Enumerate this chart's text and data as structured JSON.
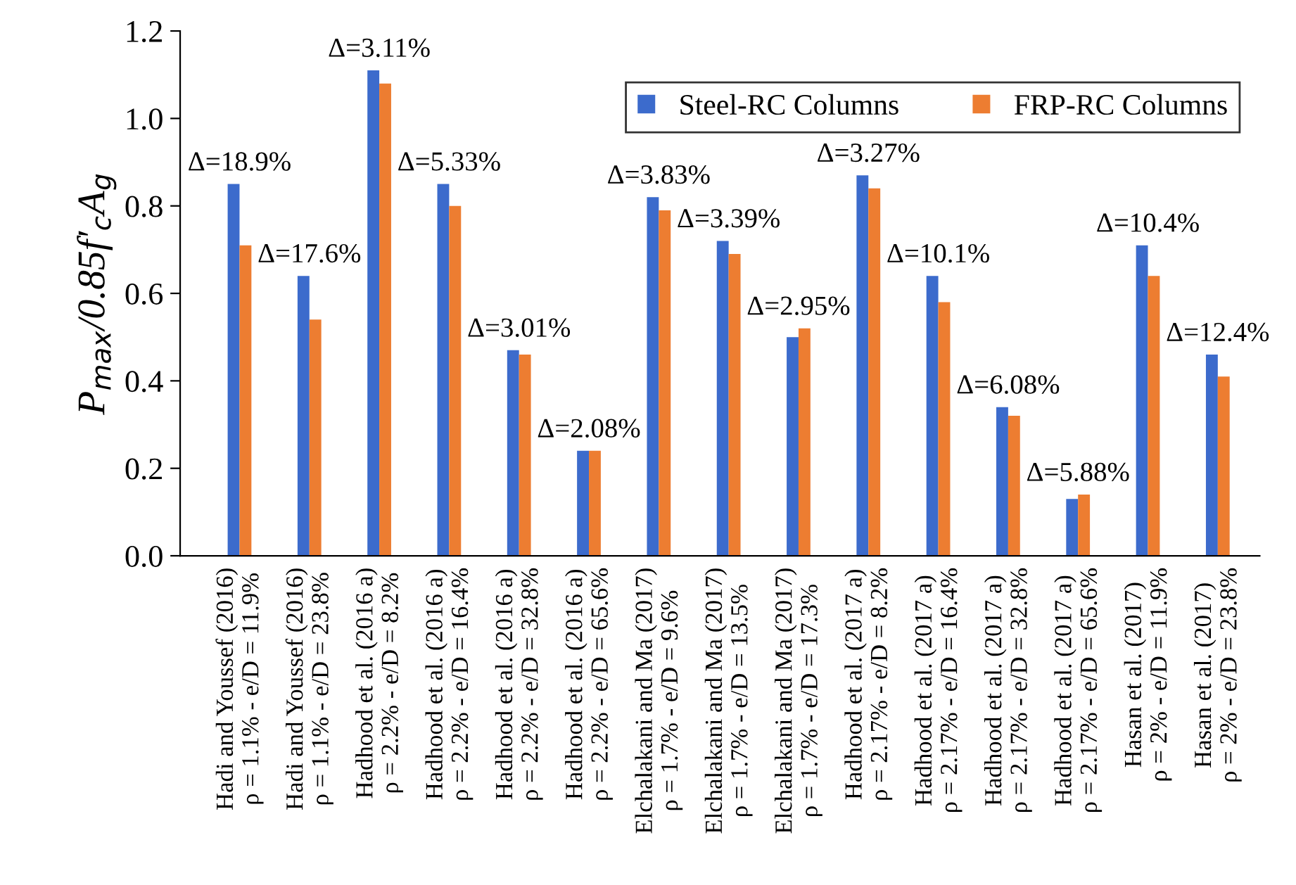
{
  "chart_data": {
    "type": "bar",
    "ylabel": "P$_{max}$/0.85f′$_{c}$A$_{g}$",
    "categories": [
      "Hadi and Youssef (2016)\nρ = 1.1% - e/D = 11.9%",
      "Hadi and Youssef (2016)\nρ = 1.1% - e/D = 23.8%",
      "Hadhood et al. (2016 a)\nρ = 2.2% - e/D = 8.2%",
      "Hadhood et al. (2016 a)\nρ = 2.2% - e/D = 16.4%",
      "Hadhood et al. (2016 a)\nρ = 2.2% - e/D = 32.8%",
      "Hadhood et al. (2016 a)\nρ = 2.2% - e/D = 65.6%",
      "Elchalakani and Ma (2017)\nρ = 1.7% - e/D = 9.6%",
      "Elchalakani and Ma (2017)\nρ = 1.7% - e/D = 13.5%",
      "Elchalakani and Ma (2017)\nρ = 1.7% - e/D = 17.3%",
      "Hadhood et al. (2017 a)\nρ = 2.17% - e/D = 8.2%",
      "Hadhood et al. (2017 a)\nρ = 2.17% - e/D = 16.4%",
      "Hadhood et al. (2017 a)\nρ = 2.17% - e/D = 32.8%",
      "Hadhood et al. (2017 a)\nρ = 2.17% - e/D = 65.6%",
      "Hasan et al. (2017)\nρ = 2% - e/D = 11.9%",
      "Hasan et al. (2017)\nρ = 2% - e/D = 23.8%"
    ],
    "series": [
      {
        "name": "Steel-RC Columns",
        "color": "#3c6bcc",
        "values": [
          0.85,
          0.64,
          1.11,
          0.85,
          0.47,
          0.24,
          0.82,
          0.72,
          0.5,
          0.87,
          0.64,
          0.34,
          0.13,
          0.71,
          0.46
        ]
      },
      {
        "name": "FRP-RC Columns",
        "color": "#ed7d31",
        "values": [
          0.71,
          0.54,
          1.08,
          0.8,
          0.46,
          0.24,
          0.79,
          0.69,
          0.52,
          0.84,
          0.58,
          0.32,
          0.14,
          0.64,
          0.41
        ]
      }
    ],
    "ylim": [
      0,
      1.2
    ],
    "yticks": [
      {
        "value": 0,
        "label": "0.0"
      },
      {
        "value": 0.2,
        "label": "0.2"
      },
      {
        "value": 0.4,
        "label": "0.4"
      },
      {
        "value": 0.6,
        "label": "0.6"
      },
      {
        "value": 0.8,
        "label": "0.8"
      },
      {
        "value": 1,
        "label": "1.0"
      },
      {
        "value": 1.2,
        "label": "1.2"
      }
    ],
    "annotations": [
      {
        "text": "Δ=18.9%",
        "x": "Hadi and Youssef (2016)\nρ = 1.1% - e/D = 11.9%",
        "y": 0.85
      },
      {
        "text": "Δ=17.6%",
        "x": "Hadi and Youssef (2016)\nρ = 1.1% - e/D = 23.8%",
        "y": 0.64
      },
      {
        "text": "Δ=3.11%",
        "x": "Hadhood et al. (2016 a)\nρ = 2.2% - e/D = 8.2%",
        "y": 1.11
      },
      {
        "text": "Δ=5.33%",
        "x": "Hadhood et al. (2016 a)\nρ = 2.2% - e/D = 16.4%",
        "y": 0.85
      },
      {
        "text": "Δ=3.01%",
        "x": "Hadhood et al. (2016 a)\nρ = 2.2% - e/D = 32.8%",
        "y": 0.47
      },
      {
        "text": "Δ=2.08%",
        "x": "Hadhood et al. (2016 a)\nρ = 2.2% - e/D = 65.6%",
        "y": 0.24
      },
      {
        "text": "Δ=3.83%",
        "x": "Elchalakani and Ma (2017)\nρ = 1.7% - e/D = 9.6%",
        "y": 0.82
      },
      {
        "text": "Δ=3.39%",
        "x": "Elchalakani and Ma (2017)\nρ = 1.7% - e/D = 13.5%",
        "y": 0.72
      },
      {
        "text": "Δ=2.95%",
        "x": "Elchalakani and Ma (2017)\nρ = 1.7% - e/D = 17.3%",
        "y": 0.52
      },
      {
        "text": "Δ=3.27%",
        "x": "Hadhood et al. (2017 a)\nρ = 2.17% - e/D = 8.2%",
        "y": 0.87
      },
      {
        "text": "Δ=10.1%",
        "x": "Hadhood et al. (2017 a)\nρ = 2.17% - e/D = 16.4%",
        "y": 0.64
      },
      {
        "text": "Δ=6.08%",
        "x": "Hadhood et al. (2017 a)\nρ = 2.17% - e/D = 32.8%",
        "y": 0.34
      },
      {
        "text": "Δ=5.88%",
        "x": "Hadhood et al. (2017 a)\nρ = 2.17% - e/D = 65.6%",
        "y": 0.14
      },
      {
        "text": "Δ=10.4%",
        "x": "Hasan et al. (2017)\nρ = 2% - e/D = 11.9%",
        "y": 0.71
      },
      {
        "text": "Δ=12.4%",
        "x": "Hasan et al. (2017)\nρ = 2% - e/D = 23.8%",
        "y": 0.46
      }
    ],
    "legend": "top right",
    "grid": false
  }
}
